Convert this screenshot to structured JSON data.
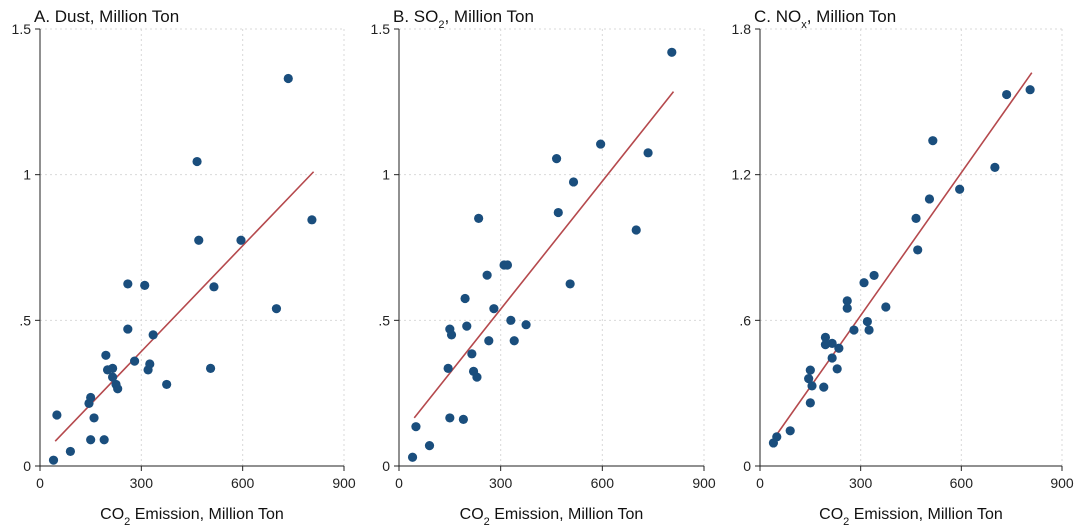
{
  "chart_data": [
    {
      "type": "scatter",
      "title": "A. Dust, Million Ton",
      "xlabel": "CO2 Emission, Million Ton",
      "ylabel": "",
      "xlim": [
        0,
        900
      ],
      "ylim": [
        0,
        1.5
      ],
      "xticks": [
        0,
        300,
        600,
        900
      ],
      "xtick_labels": [
        "0",
        "300",
        "600",
        "900"
      ],
      "yticks": [
        0,
        0.5,
        1,
        1.5
      ],
      "ytick_labels": [
        "0",
        ".5",
        "1",
        "1.5"
      ],
      "grid": true,
      "fit_line": {
        "x": [
          45,
          810
        ],
        "y": [
          0.085,
          1.01
        ],
        "color": "#b5494d"
      },
      "point_color": "#1a4e7d",
      "points": [
        {
          "x": 40,
          "y": 0.02
        },
        {
          "x": 50,
          "y": 0.175
        },
        {
          "x": 90,
          "y": 0.05
        },
        {
          "x": 145,
          "y": 0.215
        },
        {
          "x": 150,
          "y": 0.235
        },
        {
          "x": 150,
          "y": 0.09
        },
        {
          "x": 160,
          "y": 0.165
        },
        {
          "x": 190,
          "y": 0.09
        },
        {
          "x": 195,
          "y": 0.38
        },
        {
          "x": 200,
          "y": 0.33
        },
        {
          "x": 215,
          "y": 0.335
        },
        {
          "x": 215,
          "y": 0.305
        },
        {
          "x": 225,
          "y": 0.28
        },
        {
          "x": 230,
          "y": 0.265
        },
        {
          "x": 260,
          "y": 0.625
        },
        {
          "x": 260,
          "y": 0.47
        },
        {
          "x": 280,
          "y": 0.36
        },
        {
          "x": 310,
          "y": 0.62
        },
        {
          "x": 320,
          "y": 0.33
        },
        {
          "x": 325,
          "y": 0.35
        },
        {
          "x": 335,
          "y": 0.45
        },
        {
          "x": 375,
          "y": 0.28
        },
        {
          "x": 465,
          "y": 1.045
        },
        {
          "x": 470,
          "y": 0.775
        },
        {
          "x": 505,
          "y": 0.335
        },
        {
          "x": 515,
          "y": 0.615
        },
        {
          "x": 595,
          "y": 0.775
        },
        {
          "x": 700,
          "y": 0.54
        },
        {
          "x": 735,
          "y": 1.33
        },
        {
          "x": 805,
          "y": 0.845
        }
      ]
    },
    {
      "type": "scatter",
      "title_parts": [
        "B. SO",
        "2",
        ", Million Ton"
      ],
      "xlabel": "CO2 Emission, Million Ton",
      "ylabel": "",
      "xlim": [
        0,
        900
      ],
      "ylim": [
        0,
        1.5
      ],
      "xticks": [
        0,
        300,
        600,
        900
      ],
      "xtick_labels": [
        "0",
        "300",
        "600",
        "900"
      ],
      "yticks": [
        0,
        0.5,
        1,
        1.5
      ],
      "ytick_labels": [
        "0",
        ".5",
        "1",
        "1.5"
      ],
      "grid": true,
      "fit_line": {
        "x": [
          45,
          810
        ],
        "y": [
          0.165,
          1.285
        ],
        "color": "#b5494d"
      },
      "point_color": "#1a4e7d",
      "points": [
        {
          "x": 40,
          "y": 0.03
        },
        {
          "x": 50,
          "y": 0.135
        },
        {
          "x": 90,
          "y": 0.07
        },
        {
          "x": 145,
          "y": 0.335
        },
        {
          "x": 150,
          "y": 0.47
        },
        {
          "x": 155,
          "y": 0.45
        },
        {
          "x": 150,
          "y": 0.165
        },
        {
          "x": 190,
          "y": 0.16
        },
        {
          "x": 195,
          "y": 0.575
        },
        {
          "x": 200,
          "y": 0.48
        },
        {
          "x": 215,
          "y": 0.385
        },
        {
          "x": 220,
          "y": 0.325
        },
        {
          "x": 230,
          "y": 0.305
        },
        {
          "x": 235,
          "y": 0.85
        },
        {
          "x": 260,
          "y": 0.655
        },
        {
          "x": 265,
          "y": 0.43
        },
        {
          "x": 280,
          "y": 0.54
        },
        {
          "x": 310,
          "y": 0.69
        },
        {
          "x": 320,
          "y": 0.69
        },
        {
          "x": 330,
          "y": 0.5
        },
        {
          "x": 340,
          "y": 0.43
        },
        {
          "x": 375,
          "y": 0.485
        },
        {
          "x": 465,
          "y": 1.055
        },
        {
          "x": 470,
          "y": 0.87
        },
        {
          "x": 505,
          "y": 0.625
        },
        {
          "x": 515,
          "y": 0.975
        },
        {
          "x": 595,
          "y": 1.105
        },
        {
          "x": 700,
          "y": 0.81
        },
        {
          "x": 735,
          "y": 1.075
        },
        {
          "x": 805,
          "y": 1.42
        }
      ]
    },
    {
      "type": "scatter",
      "title_parts": [
        "C. NO",
        "x",
        ", Million Ton"
      ],
      "xlabel": "CO2 Emission, Million Ton",
      "ylabel": "",
      "xlim": [
        0,
        900
      ],
      "ylim": [
        0,
        1.8
      ],
      "xticks": [
        0,
        300,
        600,
        900
      ],
      "xtick_labels": [
        "0",
        "300",
        "600",
        "900"
      ],
      "yticks": [
        0,
        0.6,
        1.2,
        1.8
      ],
      "ytick_labels": [
        "0",
        ".6",
        "1.2",
        "1.8"
      ],
      "grid": true,
      "fit_line": {
        "x": [
          45,
          810
        ],
        "y": [
          0.12,
          1.62
        ],
        "color": "#b5494d"
      },
      "point_color": "#1a4e7d",
      "points": [
        {
          "x": 40,
          "y": 0.095
        },
        {
          "x": 50,
          "y": 0.12
        },
        {
          "x": 90,
          "y": 0.145
        },
        {
          "x": 145,
          "y": 0.36
        },
        {
          "x": 150,
          "y": 0.395
        },
        {
          "x": 150,
          "y": 0.26
        },
        {
          "x": 155,
          "y": 0.33
        },
        {
          "x": 190,
          "y": 0.325
        },
        {
          "x": 195,
          "y": 0.53
        },
        {
          "x": 195,
          "y": 0.5
        },
        {
          "x": 215,
          "y": 0.445
        },
        {
          "x": 215,
          "y": 0.505
        },
        {
          "x": 230,
          "y": 0.4
        },
        {
          "x": 235,
          "y": 0.485
        },
        {
          "x": 260,
          "y": 0.68
        },
        {
          "x": 260,
          "y": 0.65
        },
        {
          "x": 280,
          "y": 0.56
        },
        {
          "x": 310,
          "y": 0.755
        },
        {
          "x": 320,
          "y": 0.595
        },
        {
          "x": 325,
          "y": 0.56
        },
        {
          "x": 340,
          "y": 0.785
        },
        {
          "x": 375,
          "y": 0.655
        },
        {
          "x": 465,
          "y": 1.02
        },
        {
          "x": 470,
          "y": 0.89
        },
        {
          "x": 505,
          "y": 1.1
        },
        {
          "x": 515,
          "y": 1.34
        },
        {
          "x": 595,
          "y": 1.14
        },
        {
          "x": 700,
          "y": 1.23
        },
        {
          "x": 735,
          "y": 1.53
        },
        {
          "x": 805,
          "y": 1.55
        }
      ]
    }
  ]
}
